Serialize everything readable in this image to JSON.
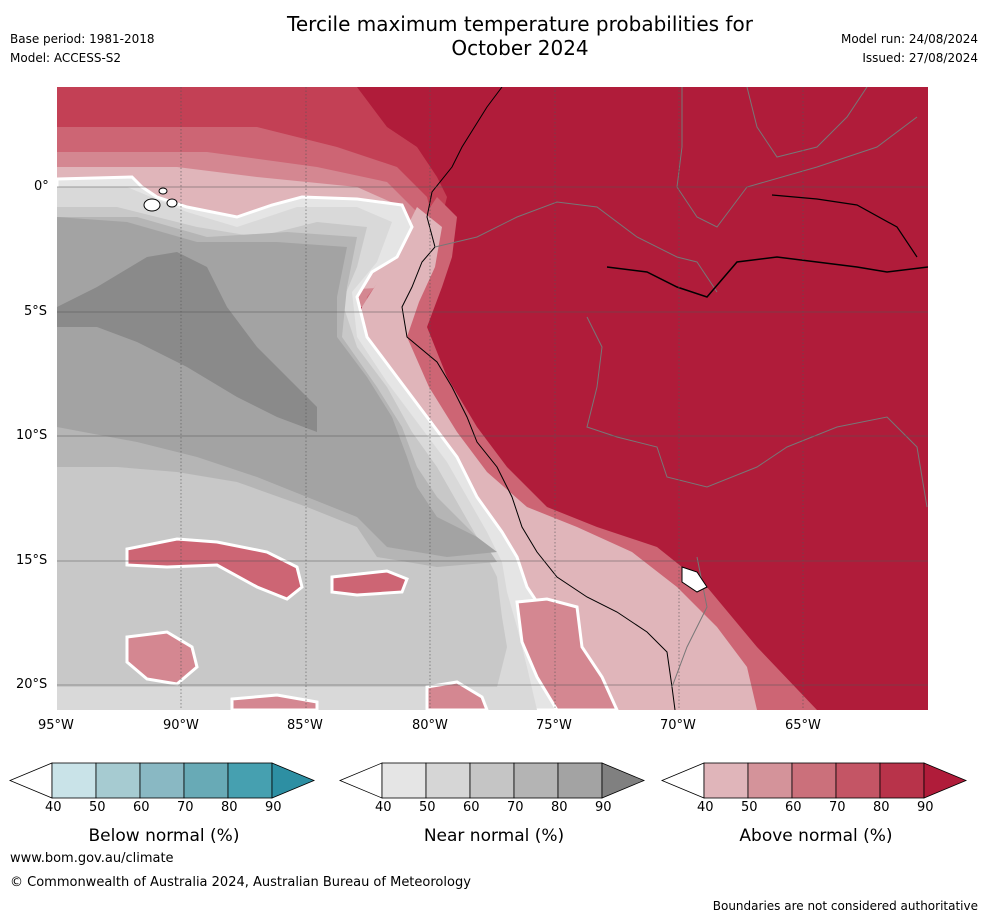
{
  "header": {
    "title_line1": "Tercile maximum temperature probabilities for",
    "title_line2": "October 2024",
    "base_period": "Base period: 1981-2018",
    "model": "Model: ACCESS-S2",
    "model_run": "Model run: 24/08/2024",
    "issued": "Issued: 27/08/2024"
  },
  "map": {
    "lat_labels": [
      "0°",
      "5°S",
      "10°S",
      "15°S",
      "20°S"
    ],
    "lon_labels": [
      "95°W",
      "90°W",
      "85°W",
      "80°W",
      "75°W",
      "70°W",
      "65°W"
    ],
    "colors": {
      "above_90": "#b01c3a",
      "above_80": "#c34055",
      "above_70": "#cd6574",
      "above_60": "#d48791",
      "above_50": "#e0b5ba",
      "near_40": "#e5e5e5",
      "near_50": "#d9d9d9",
      "near_60": "#c8c8c8",
      "near_70": "#b5b5b5",
      "near_80": "#a3a3a3",
      "near_90": "#8a8a8a"
    }
  },
  "colorbars": [
    {
      "caption": "Below normal (%)",
      "ticks": [
        "40",
        "50",
        "60",
        "70",
        "80",
        "90"
      ],
      "colors": [
        "#ffffff",
        "#c9e3e8",
        "#a6cbd1",
        "#89b8c3",
        "#68aab6",
        "#46a0b0",
        "#2d8fa3"
      ]
    },
    {
      "caption": "Near normal (%)",
      "ticks": [
        "40",
        "50",
        "60",
        "70",
        "80",
        "90"
      ],
      "colors": [
        "#ffffff",
        "#e5e5e5",
        "#d6d6d6",
        "#c5c5c5",
        "#b4b4b4",
        "#a3a3a3",
        "#808080"
      ]
    },
    {
      "caption": "Above normal (%)",
      "ticks": [
        "40",
        "50",
        "60",
        "70",
        "80",
        "90"
      ],
      "colors": [
        "#ffffff",
        "#e0b5ba",
        "#d4939a",
        "#cb707b",
        "#c45565",
        "#b8334a",
        "#b01c3a"
      ]
    }
  ],
  "footer": {
    "url": "www.bom.gov.au/climate",
    "copyright": "© Commonwealth of Australia 2024, Australian Bureau of Meteorology",
    "disclaimer": "Boundaries are not considered authoritative"
  }
}
